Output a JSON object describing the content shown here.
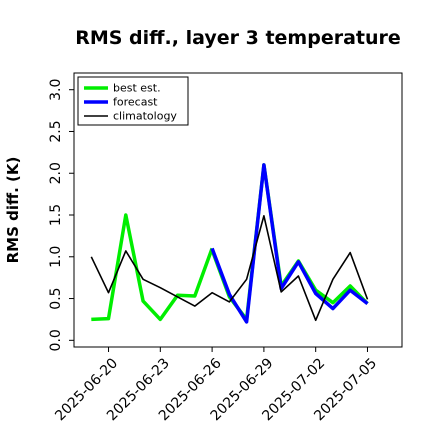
{
  "chart_data": {
    "type": "line",
    "title": "RMS diff., layer 3 temperature",
    "ylabel": "RMS diff. (K)",
    "xlabel": "",
    "ylim": [
      -0.08,
      3.2
    ],
    "yticks": [
      "0.0",
      "0.5",
      "1.0",
      "1.5",
      "2.0",
      "2.5",
      "3.0"
    ],
    "x_range": [
      "2025-06-18",
      "2025-07-07"
    ],
    "x_ticks": [
      {
        "date": "2025-06-20",
        "label": "2025-06-20",
        "color": "#000000"
      },
      {
        "date": "2025-06-23",
        "label": "2025-06-23",
        "color": "#000000"
      },
      {
        "date": "2025-06-26",
        "label": "2025-06-26",
        "color": "#228B22"
      },
      {
        "date": "2025-06-29",
        "label": "2025-06-29",
        "color": "#000000"
      },
      {
        "date": "2025-07-02",
        "label": "2025-07-02",
        "color": "#000000"
      },
      {
        "date": "2025-07-05",
        "label": "2025-07-05",
        "color": "#000000"
      }
    ],
    "legend_position": "top-left",
    "series": [
      {
        "name": "best est.",
        "color": "#00ee00",
        "dates": [
          "2025-06-19",
          "2025-06-20",
          "2025-06-21",
          "2025-06-22",
          "2025-06-23",
          "2025-06-24",
          "2025-06-25",
          "2025-06-26"
        ],
        "values": [
          0.25,
          0.26,
          1.5,
          0.47,
          0.25,
          0.54,
          0.53,
          1.1
        ]
      },
      {
        "name": "forecast",
        "color": "#0000ff",
        "dates": [
          "2025-06-26",
          "2025-06-27",
          "2025-06-28",
          "2025-06-29",
          "2025-06-30",
          "2025-07-01",
          "2025-07-02",
          "2025-07-03",
          "2025-07-04",
          "2025-07-05"
        ],
        "values": [
          1.1,
          0.55,
          0.22,
          2.1,
          0.62,
          0.94,
          0.56,
          0.38,
          0.6,
          0.44
        ]
      },
      {
        "name": "climatology",
        "color": "#000000",
        "dates": [
          "2025-06-19",
          "2025-06-20",
          "2025-06-21",
          "2025-06-22",
          "2025-06-23",
          "2025-06-24",
          "2025-06-25",
          "2025-06-26",
          "2025-06-27",
          "2025-06-28",
          "2025-06-29",
          "2025-06-30",
          "2025-07-01",
          "2025-07-02",
          "2025-07-03",
          "2025-07-04",
          "2025-07-05"
        ],
        "values": [
          1.0,
          0.57,
          1.07,
          0.73,
          0.63,
          0.52,
          0.41,
          0.57,
          0.46,
          0.73,
          1.49,
          0.58,
          0.77,
          0.24,
          0.73,
          1.05,
          0.49
        ]
      }
    ],
    "extra_segments": [
      {
        "color": "#00ee00",
        "dates": [
          "2025-06-26",
          "2025-06-27",
          "2025-06-28",
          "2025-06-29",
          "2025-06-30",
          "2025-07-01",
          "2025-07-02",
          "2025-07-03",
          "2025-07-04",
          "2025-07-05"
        ],
        "values": [
          1.08,
          0.52,
          0.25,
          2.1,
          0.65,
          0.95,
          0.6,
          0.45,
          0.65,
          0.44
        ]
      }
    ]
  }
}
